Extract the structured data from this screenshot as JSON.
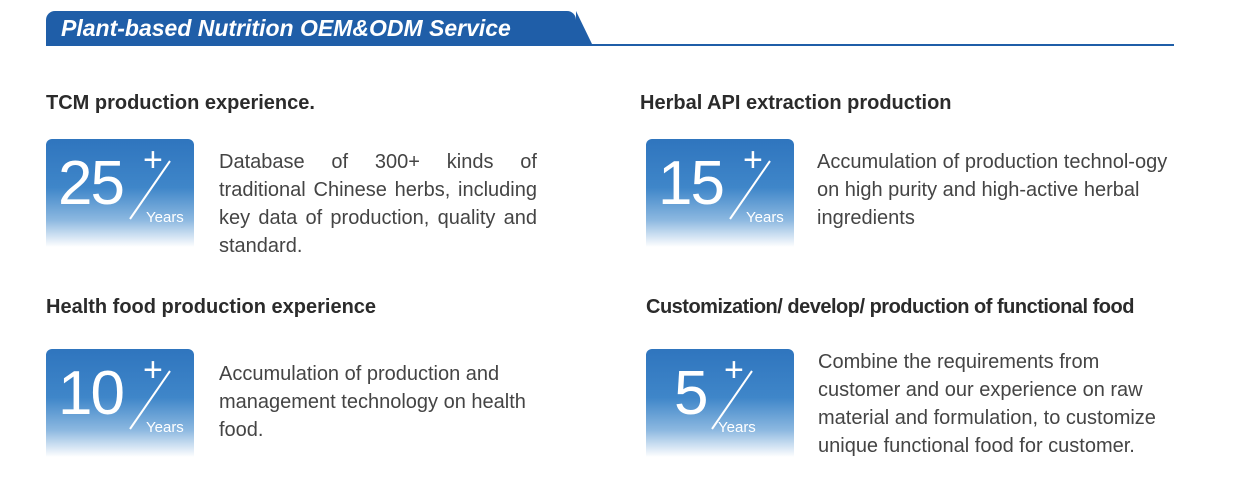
{
  "header": {
    "title": "Plant-based Nutrition OEM&ODM Service"
  },
  "cards": [
    {
      "title": "TCM production experience.",
      "number": "25",
      "plus": "+",
      "unit": "Years",
      "description": "Database of 300+ kinds of traditional Chinese herbs, including key data of production, quality and standard."
    },
    {
      "title": "Herbal API extraction production",
      "number": "15",
      "plus": "+",
      "unit": "Years",
      "description": "Accumulation of production technol-ogy on high purity and high-active herbal ingredients"
    },
    {
      "title": "Health food production experience",
      "number": "10",
      "plus": "+",
      "unit": "Years",
      "description": "Accumulation of production and management technology on health food."
    },
    {
      "title": "Customization/ develop/ production of functional food",
      "number": "5",
      "plus": "+",
      "unit": "Years",
      "description": "Combine the requirements from customer and our experience on raw material and formulation, to customize unique functional food for customer."
    }
  ],
  "colors": {
    "brand_blue": "#1f5ea8",
    "badge_blue": "#3a80c6"
  },
  "icons": {
    "divider": "diagonal-slash"
  }
}
